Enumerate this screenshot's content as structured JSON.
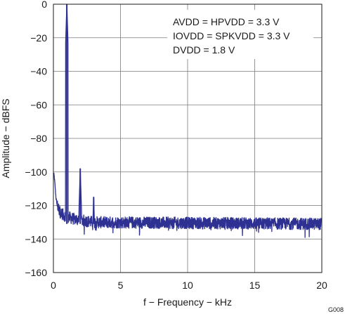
{
  "chart_data": {
    "type": "line",
    "xlabel": "f − Frequency − kHz",
    "ylabel": "Amplitude − dBFS",
    "xlim": [
      0,
      20
    ],
    "ylim": [
      -160,
      0
    ],
    "xticks": [
      0,
      5,
      10,
      15,
      20
    ],
    "yticks": [
      0,
      -20,
      -40,
      -60,
      -80,
      -100,
      -120,
      -140,
      -160
    ],
    "xtick_labels": [
      "0",
      "5",
      "10",
      "15",
      "20"
    ],
    "ytick_labels": [
      "0",
      "−20",
      "−40",
      "−60",
      "−80",
      "−100",
      "−120",
      "−140",
      "−160"
    ],
    "grid": true,
    "annotations": [
      "AVDD = HPVDD = 3.3 V",
      "IOVDD = SPKVDD = 3.3 V",
      "DVDD = 1.8 V"
    ],
    "figure_id": "G008",
    "series_color": "#2e3192",
    "noise_floor": -131,
    "peaks": [
      {
        "x": 1.0,
        "y": 0
      },
      {
        "x": 2.0,
        "y": -98
      },
      {
        "x": 3.0,
        "y": -115
      }
    ],
    "low_freq_rolloff": [
      {
        "x": 0.0,
        "y": -101
      },
      {
        "x": 0.05,
        "y": -102
      },
      {
        "x": 0.1,
        "y": -106
      },
      {
        "x": 0.2,
        "y": -116
      },
      {
        "x": 0.3,
        "y": -120
      },
      {
        "x": 0.5,
        "y": -124
      },
      {
        "x": 0.8,
        "y": -126
      },
      {
        "x": 1.5,
        "y": -128
      },
      {
        "x": 3.0,
        "y": -130
      },
      {
        "x": 20.0,
        "y": -131
      }
    ]
  }
}
